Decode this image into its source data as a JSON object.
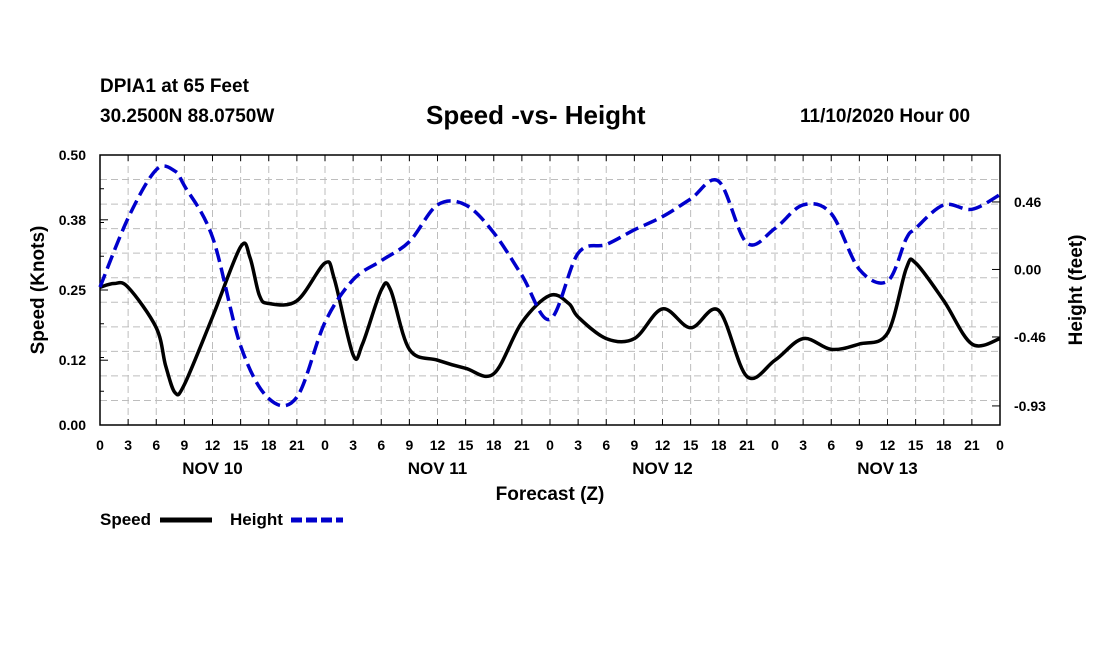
{
  "header": {
    "station": "DPIA1 at 65 Feet",
    "coords": "30.2500N 88.0750W",
    "date": "11/10/2020 Hour 00"
  },
  "chart_data": {
    "type": "line",
    "title": "Speed -vs- Height",
    "xlabel": "Forecast (Z)",
    "ylabel": "Speed (Knots)",
    "y2label": "Height (feet)",
    "xlim": [
      0,
      96
    ],
    "ylim": [
      0,
      0.5
    ],
    "y2lim": [
      -1.06,
      0.78
    ],
    "grid": true,
    "x_tick_values": [
      0,
      3,
      6,
      9,
      12,
      15,
      18,
      21,
      24,
      27,
      30,
      33,
      36,
      39,
      42,
      45,
      48,
      51,
      54,
      57,
      60,
      63,
      66,
      69,
      72,
      75,
      78,
      81,
      84,
      87,
      90,
      93,
      96
    ],
    "x_tick_labels": [
      "0",
      "3",
      "6",
      "9",
      "12",
      "15",
      "18",
      "21",
      "0",
      "3",
      "6",
      "9",
      "12",
      "15",
      "18",
      "21",
      "0",
      "3",
      "6",
      "9",
      "12",
      "15",
      "18",
      "21",
      "0",
      "3",
      "6",
      "9",
      "12",
      "15",
      "18",
      "21",
      "0"
    ],
    "y_ticks": [
      0.0,
      0.12,
      0.25,
      0.38,
      0.5
    ],
    "y_tick_labels": [
      "0.00",
      "0.12",
      "0.25",
      "0.38",
      "0.50"
    ],
    "y2_ticks": [
      -0.93,
      -0.46,
      0.0,
      0.46
    ],
    "y2_tick_labels": [
      "-0.93",
      "-0.46",
      "0.00",
      "0.46"
    ],
    "date_labels": [
      {
        "label": "NOV 10",
        "x": 12
      },
      {
        "label": "NOV 11",
        "x": 36
      },
      {
        "label": "NOV 12",
        "x": 60
      },
      {
        "label": "NOV 13",
        "x": 84
      }
    ],
    "series": [
      {
        "name": "Speed",
        "axis": "left",
        "color": "#000000",
        "style": "solid",
        "x": [
          0,
          1.5,
          3,
          6,
          7,
          8,
          9,
          12,
          15,
          16,
          17,
          18,
          21,
          24,
          25,
          27,
          28,
          30,
          31,
          33,
          36,
          39,
          42,
          45,
          48,
          50,
          51,
          54,
          57,
          60,
          63,
          66,
          69,
          72,
          75,
          78,
          81,
          84,
          86,
          87,
          90,
          93,
          96
        ],
        "y": [
          0.255,
          0.262,
          0.255,
          0.18,
          0.11,
          0.06,
          0.075,
          0.2,
          0.33,
          0.31,
          0.24,
          0.225,
          0.23,
          0.3,
          0.27,
          0.13,
          0.15,
          0.25,
          0.25,
          0.14,
          0.12,
          0.105,
          0.095,
          0.19,
          0.24,
          0.225,
          0.2,
          0.16,
          0.16,
          0.215,
          0.18,
          0.212,
          0.09,
          0.12,
          0.16,
          0.14,
          0.15,
          0.17,
          0.29,
          0.3,
          0.23,
          0.15,
          0.16
        ]
      },
      {
        "name": "Height",
        "axis": "right",
        "color": "#0000cc",
        "style": "dashed",
        "x": [
          0,
          3,
          6,
          8,
          9,
          12,
          15,
          18,
          21,
          24,
          27,
          30,
          33,
          36,
          39,
          42,
          45,
          48,
          51,
          54,
          57,
          60,
          63,
          66,
          69,
          72,
          75,
          78,
          81,
          84,
          86,
          87,
          90,
          93,
          96
        ],
        "y": [
          -0.12,
          0.35,
          0.68,
          0.67,
          0.57,
          0.22,
          -0.52,
          -0.88,
          -0.87,
          -0.36,
          -0.07,
          0.06,
          0.19,
          0.44,
          0.44,
          0.25,
          -0.04,
          -0.34,
          0.11,
          0.17,
          0.27,
          0.36,
          0.48,
          0.6,
          0.18,
          0.28,
          0.44,
          0.38,
          0.0,
          -0.08,
          0.21,
          0.28,
          0.44,
          0.41,
          0.51
        ]
      }
    ],
    "legend": [
      {
        "label": "Speed",
        "color": "#000000",
        "style": "solid"
      },
      {
        "label": "Height",
        "color": "#0000cc",
        "style": "dashed"
      }
    ]
  }
}
